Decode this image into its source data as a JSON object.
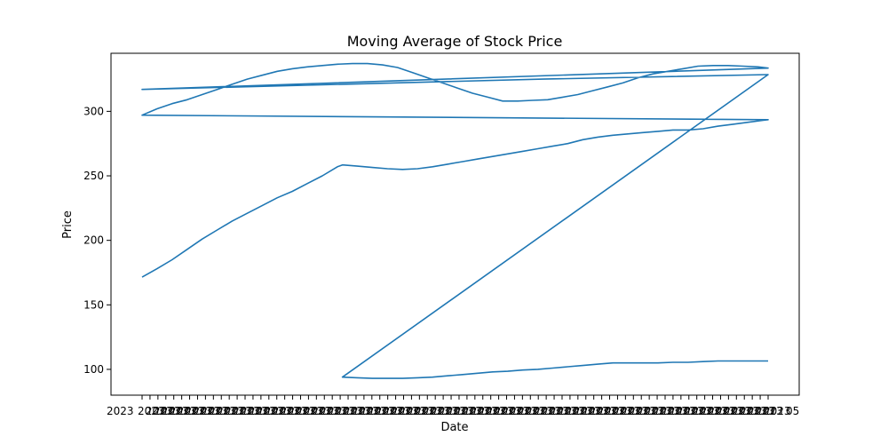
{
  "chart_data": {
    "type": "line",
    "title": "Moving Average of Stock Price",
    "xlabel": "Date",
    "ylabel": "Price",
    "ylim": [
      80,
      345
    ],
    "y_ticks": [
      100,
      150,
      200,
      250,
      300
    ],
    "grid": false,
    "x_tick_count": 80,
    "x_tick_visible_labels": [
      "2023",
      "05"
    ],
    "series": [
      {
        "values": [
          [
            0,
            171.5
          ],
          [
            3,
            178
          ],
          [
            6,
            185
          ],
          [
            9,
            193
          ],
          [
            12,
            201
          ],
          [
            15,
            208
          ],
          [
            18,
            215
          ],
          [
            21,
            221
          ],
          [
            24,
            227
          ],
          [
            27,
            233
          ],
          [
            30,
            238
          ],
          [
            33,
            244
          ],
          [
            36,
            250
          ],
          [
            39,
            257
          ],
          [
            40,
            258.5
          ],
          [
            43,
            257.5
          ],
          [
            46,
            256.5
          ],
          [
            49,
            255.5
          ],
          [
            52,
            255
          ],
          [
            55,
            255.5
          ],
          [
            58,
            257
          ],
          [
            61,
            259
          ],
          [
            64,
            261
          ],
          [
            67,
            263
          ],
          [
            70,
            265
          ],
          [
            73,
            267
          ],
          [
            76,
            269
          ],
          [
            79,
            271
          ],
          [
            82,
            273
          ],
          [
            85,
            275
          ],
          [
            88,
            278
          ],
          [
            91,
            280
          ],
          [
            94,
            281.5
          ],
          [
            97,
            282.5
          ],
          [
            100,
            283.5
          ],
          [
            103,
            284.5
          ],
          [
            106,
            285.5
          ],
          [
            109,
            285.5
          ],
          [
            112,
            286.5
          ],
          [
            115,
            288.5
          ],
          [
            118,
            290
          ],
          [
            121,
            291.5
          ],
          [
            124,
            293
          ],
          [
            125,
            293.5
          ],
          [
            0,
            297
          ],
          [
            3,
            302
          ],
          [
            6,
            306
          ],
          [
            9,
            309
          ],
          [
            12,
            313
          ],
          [
            15,
            317
          ],
          [
            18,
            321
          ],
          [
            21,
            325
          ],
          [
            24,
            328
          ],
          [
            27,
            331
          ],
          [
            30,
            333
          ],
          [
            33,
            334.5
          ],
          [
            36,
            335.5
          ],
          [
            39,
            336.5
          ],
          [
            42,
            337
          ],
          [
            45,
            337
          ],
          [
            48,
            336
          ],
          [
            51,
            334
          ],
          [
            54,
            330
          ],
          [
            57,
            326
          ],
          [
            60,
            322
          ],
          [
            63,
            318
          ],
          [
            66,
            314
          ],
          [
            69,
            311
          ],
          [
            72,
            308
          ],
          [
            75,
            308
          ],
          [
            78,
            308.5
          ],
          [
            81,
            309
          ],
          [
            84,
            311
          ],
          [
            87,
            313
          ],
          [
            90,
            316
          ],
          [
            93,
            319
          ],
          [
            96,
            322
          ],
          [
            99,
            326
          ],
          [
            102,
            329
          ],
          [
            105,
            331
          ],
          [
            108,
            333
          ],
          [
            111,
            335
          ],
          [
            114,
            335.5
          ],
          [
            117,
            335.5
          ],
          [
            120,
            335
          ],
          [
            123,
            334.5
          ],
          [
            125,
            333.5
          ],
          [
            0,
            317
          ],
          [
            40,
            321
          ],
          [
            80,
            325
          ],
          [
            125,
            328.5
          ],
          [
            40,
            94
          ],
          [
            43,
            93.5
          ],
          [
            46,
            93
          ],
          [
            49,
            93
          ],
          [
            52,
            93
          ],
          [
            55,
            93.5
          ],
          [
            58,
            94
          ],
          [
            61,
            95
          ],
          [
            64,
            96
          ],
          [
            67,
            97
          ],
          [
            70,
            98
          ],
          [
            73,
            98.5
          ],
          [
            76,
            99.5
          ],
          [
            79,
            100
          ],
          [
            82,
            101
          ],
          [
            85,
            102
          ],
          [
            88,
            103
          ],
          [
            91,
            104
          ],
          [
            94,
            105
          ],
          [
            97,
            105
          ],
          [
            100,
            105
          ],
          [
            103,
            105
          ],
          [
            106,
            105.5
          ],
          [
            109,
            105.5
          ],
          [
            112,
            106
          ],
          [
            115,
            106.5
          ],
          [
            118,
            106.5
          ],
          [
            121,
            106.5
          ],
          [
            124,
            106.5
          ],
          [
            125,
            106.5
          ]
        ]
      }
    ],
    "segments_note": ""
  }
}
